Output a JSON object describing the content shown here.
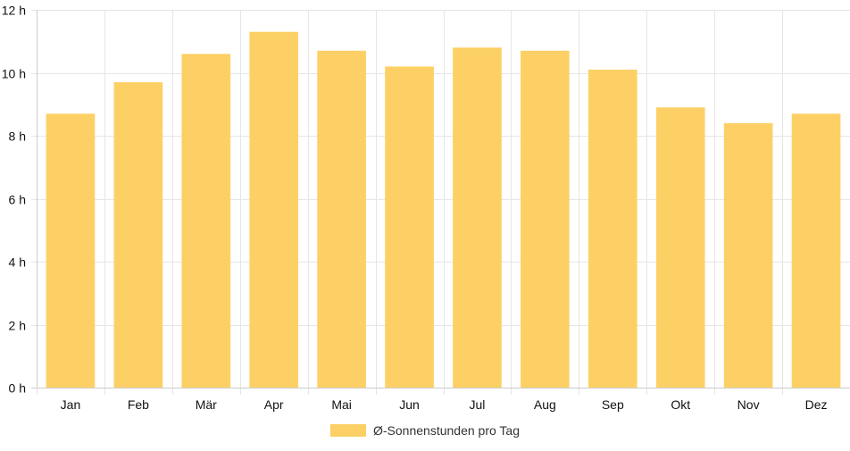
{
  "chart_data": {
    "type": "bar",
    "categories": [
      "Jan",
      "Feb",
      "Mär",
      "Apr",
      "Mai",
      "Jun",
      "Jul",
      "Aug",
      "Sep",
      "Okt",
      "Nov",
      "Dez"
    ],
    "series": [
      {
        "name": "Ø-Sonnenstunden pro Tag",
        "values": [
          8.7,
          9.7,
          10.6,
          11.3,
          10.7,
          10.2,
          10.8,
          10.7,
          10.1,
          8.9,
          8.4,
          8.7
        ]
      }
    ],
    "ylim": [
      0,
      12
    ],
    "yticks": [
      0,
      2,
      4,
      6,
      8,
      10,
      12
    ],
    "ytick_suffix": " h",
    "grid": true,
    "legend_position": "bottom",
    "colors": {
      "bar": "#FDD066",
      "grid": "#e6e6e6",
      "axis": "#cccccc"
    }
  }
}
